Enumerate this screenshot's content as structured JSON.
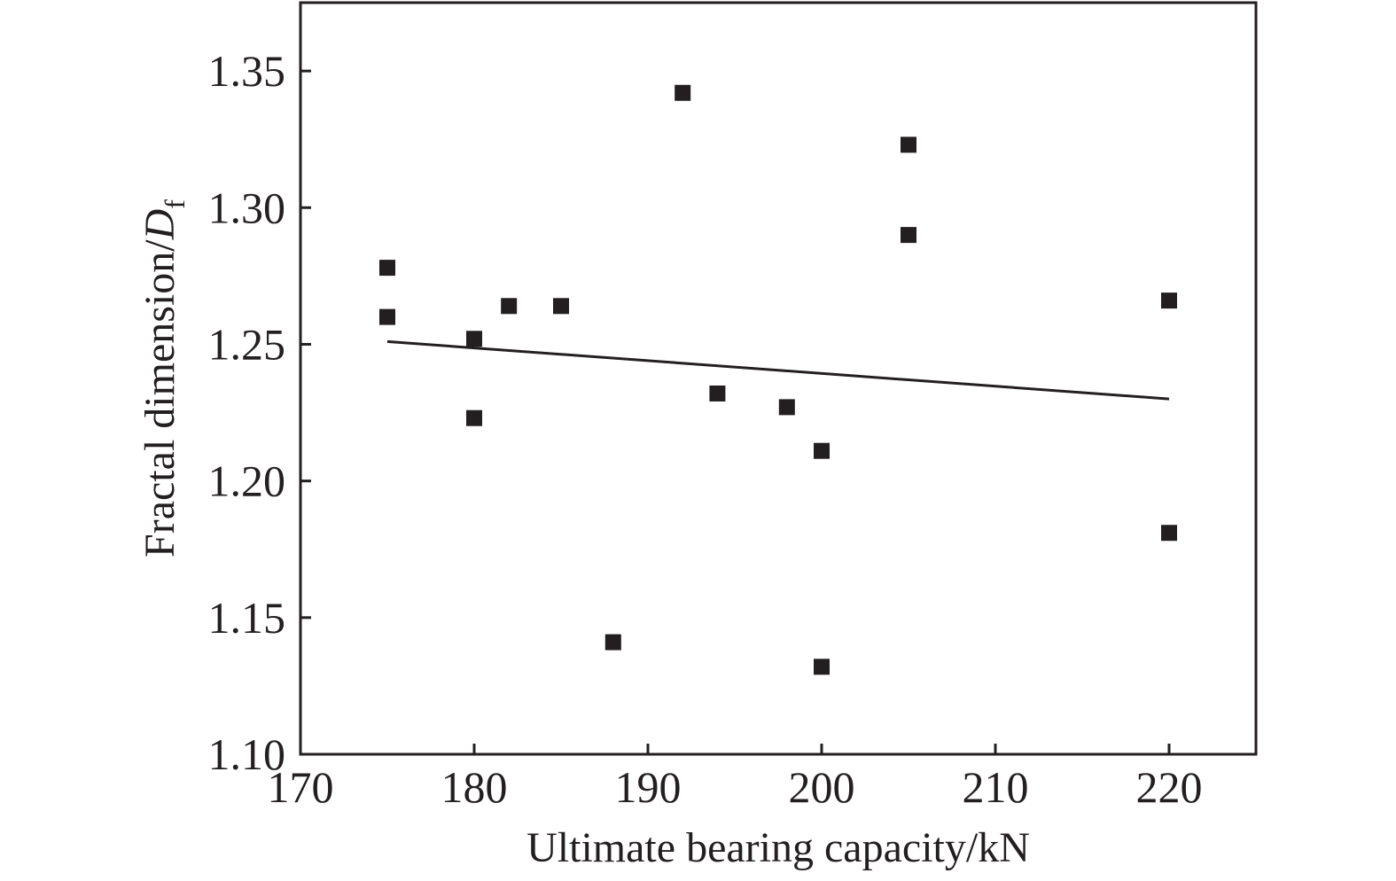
{
  "chart_data": {
    "type": "scatter",
    "xlabel": "Ultimate bearing capacity/kN",
    "ylabel": {
      "text": "Fractal dimension/",
      "symbol": "D",
      "subscript": "f"
    },
    "xlim": [
      170,
      225
    ],
    "ylim": [
      1.1,
      1.375
    ],
    "x_ticks": [
      170,
      180,
      190,
      200,
      210,
      220
    ],
    "y_ticks": [
      1.1,
      1.15,
      1.2,
      1.25,
      1.3,
      1.35
    ],
    "x_tick_labels": [
      "170",
      "180",
      "190",
      "200",
      "210",
      "220"
    ],
    "y_tick_labels": [
      "1.10",
      "1.15",
      "1.20",
      "1.25",
      "1.30",
      "1.35"
    ],
    "grid": false,
    "legend": "none",
    "marker": "square",
    "marker_color": "#231f20",
    "series": [
      {
        "points": [
          {
            "x": 175,
            "y": 1.278
          },
          {
            "x": 175,
            "y": 1.26
          },
          {
            "x": 180,
            "y": 1.252
          },
          {
            "x": 180,
            "y": 1.223
          },
          {
            "x": 182,
            "y": 1.264
          },
          {
            "x": 185,
            "y": 1.264
          },
          {
            "x": 188,
            "y": 1.141
          },
          {
            "x": 192,
            "y": 1.342
          },
          {
            "x": 194,
            "y": 1.232
          },
          {
            "x": 198,
            "y": 1.227
          },
          {
            "x": 200,
            "y": 1.211
          },
          {
            "x": 200,
            "y": 1.132
          },
          {
            "x": 205,
            "y": 1.323
          },
          {
            "x": 205,
            "y": 1.29
          },
          {
            "x": 220,
            "y": 1.266
          },
          {
            "x": 220,
            "y": 1.181
          }
        ]
      }
    ],
    "fit_line": {
      "type": "linear",
      "x": [
        175,
        220
      ],
      "y": [
        1.251,
        1.23
      ]
    }
  }
}
